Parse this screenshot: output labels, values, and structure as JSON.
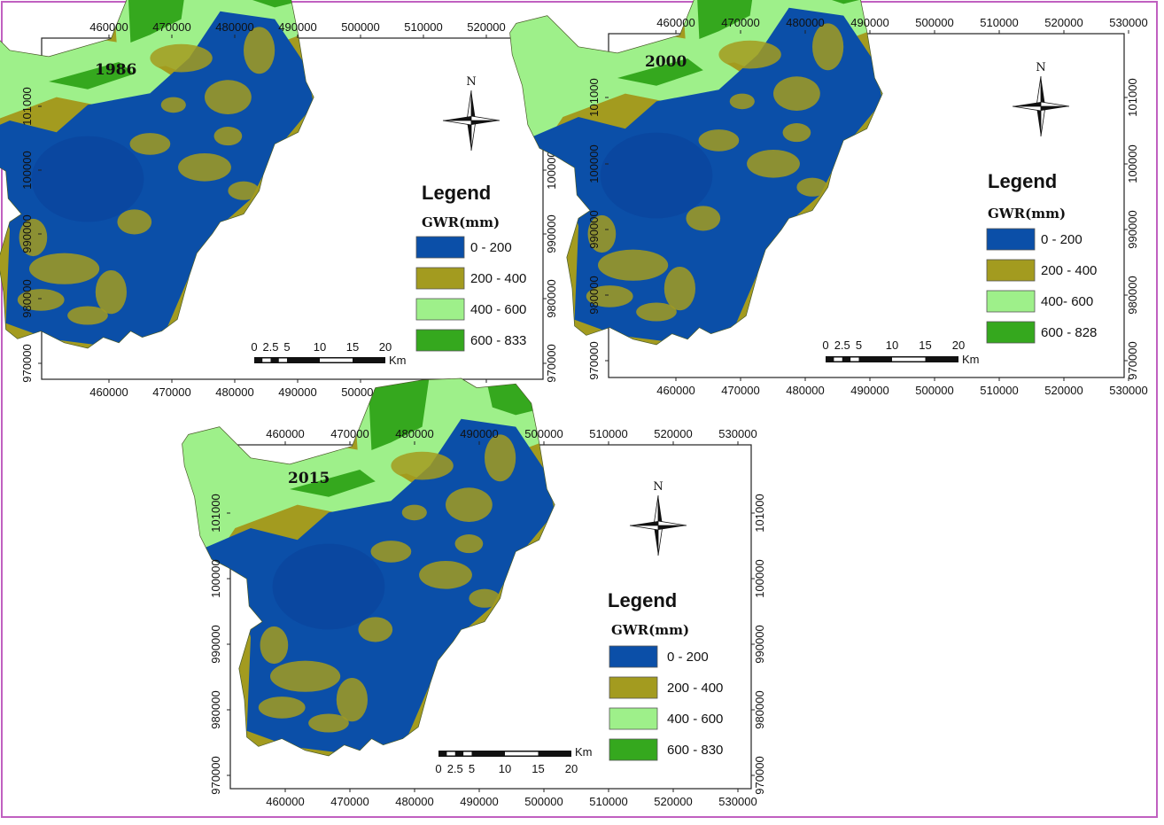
{
  "colors": {
    "class_0_200": "#0b4fa8",
    "class_200_400": "#a39b1f",
    "class_400_600": "#9ef08a",
    "class_600_plus": "#35a81e",
    "frame": "#c060c0"
  },
  "maps": [
    {
      "year": "1986",
      "legend_title": "Legend",
      "legend_subtitle": "GWR(mm)",
      "classes": [
        "0 - 200",
        "200 - 400",
        "400 - 600",
        "600 - 833"
      ],
      "north_label": "N",
      "x_ticks": [
        "460000",
        "470000",
        "480000",
        "490000",
        "500000",
        "510000",
        "520000"
      ],
      "y_ticks": [
        "101000",
        "100000",
        "990000",
        "980000",
        "970000"
      ],
      "scalebar": {
        "labels": [
          "0",
          "2.5",
          "5",
          "10",
          "15",
          "20"
        ],
        "unit": "Km"
      }
    },
    {
      "year": "2000",
      "legend_title": "Legend",
      "legend_subtitle": "GWR(mm)",
      "classes": [
        "0 - 200",
        "200 - 400",
        "400- 600",
        "600 - 828"
      ],
      "north_label": "N",
      "x_ticks": [
        "460000",
        "470000",
        "480000",
        "490000",
        "500000",
        "510000",
        "520000",
        "530000"
      ],
      "y_ticks": [
        "101000",
        "100000",
        "990000",
        "980000",
        "970000"
      ],
      "scalebar": {
        "labels": [
          "0",
          "2.5",
          "5",
          "10",
          "15",
          "20"
        ],
        "unit": "Km"
      }
    },
    {
      "year": "2015",
      "legend_title": "Legend",
      "legend_subtitle": "GWR(mm)",
      "classes": [
        "0 - 200",
        "200 - 400",
        "400 - 600",
        "600 - 830"
      ],
      "north_label": "N",
      "x_ticks": [
        "460000",
        "470000",
        "480000",
        "490000",
        "500000",
        "510000",
        "520000",
        "530000"
      ],
      "y_ticks": [
        "101000",
        "100000",
        "990000",
        "980000",
        "970000"
      ],
      "scalebar": {
        "labels": [
          "0",
          "2.5",
          "5",
          "10",
          "15",
          "20"
        ],
        "unit": "Km"
      }
    }
  ]
}
